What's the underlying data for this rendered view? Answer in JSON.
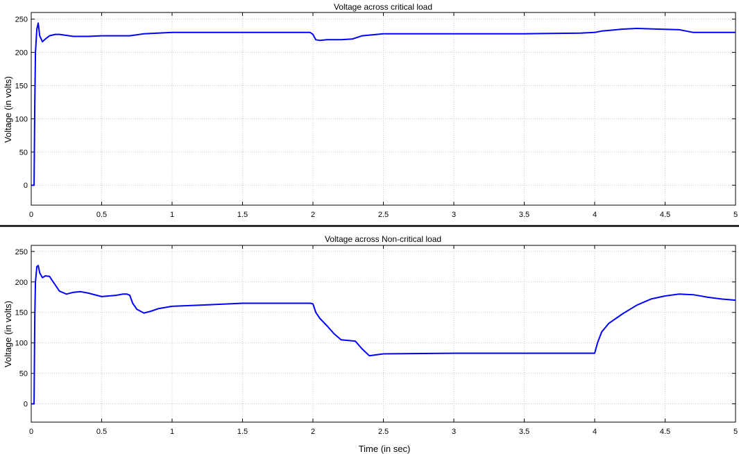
{
  "chart_data": [
    {
      "type": "line",
      "title": "Voltage across critical load",
      "xlabel": "",
      "ylabel": "Voltage (in volts)",
      "xlim": [
        0,
        5
      ],
      "ylim": [
        -30,
        260
      ],
      "xticks": [
        0,
        0.5,
        1,
        1.5,
        2,
        2.5,
        3,
        3.5,
        4,
        4.5,
        5
      ],
      "xtick_labels": [
        "0",
        "0.5",
        "1",
        "1.5",
        "2",
        "2.5",
        "3",
        "3.5",
        "4",
        "4.5",
        "5"
      ],
      "yticks": [
        0,
        50,
        100,
        150,
        200,
        250
      ],
      "ytick_labels": [
        "0",
        "50",
        "100",
        "150",
        "200",
        "250"
      ],
      "grid": true,
      "line_color": "#0000ff",
      "series": [
        {
          "x": [
            0,
            0.02,
            0.025,
            0.03,
            0.04,
            0.05,
            0.06,
            0.08,
            0.1,
            0.13,
            0.17,
            0.2,
            0.3,
            0.4,
            0.5,
            0.6,
            0.7,
            0.8,
            0.9,
            1.0,
            1.2,
            1.5,
            1.8,
            1.98,
            2.0,
            2.02,
            2.05,
            2.1,
            2.2,
            2.28,
            2.35,
            2.5,
            3.0,
            3.5,
            3.9,
            4.0,
            4.05,
            4.1,
            4.2,
            4.3,
            4.45,
            4.6,
            4.65,
            4.7,
            5.0
          ],
          "y": [
            0,
            0,
            120,
            200,
            235,
            244,
            225,
            216,
            220,
            225,
            227,
            227,
            224,
            224,
            225,
            225,
            225,
            228,
            229,
            230,
            230,
            230,
            230,
            230,
            227,
            219,
            218,
            219,
            219,
            220,
            225,
            228,
            228,
            228,
            229,
            230,
            232,
            233,
            235,
            236,
            235,
            234,
            232,
            230,
            230
          ]
        }
      ]
    },
    {
      "type": "line",
      "title": "Voltage across Non-critical load",
      "xlabel": "Time (in sec)",
      "ylabel": "Voltage (in volts)",
      "xlim": [
        0,
        5
      ],
      "ylim": [
        -30,
        260
      ],
      "xticks": [
        0,
        0.5,
        1,
        1.5,
        2,
        2.5,
        3,
        3.5,
        4,
        4.5,
        5
      ],
      "xtick_labels": [
        "0",
        "0.5",
        "1",
        "1.5",
        "2",
        "2.5",
        "3",
        "3.5",
        "4",
        "4.5",
        "5"
      ],
      "yticks": [
        0,
        50,
        100,
        150,
        200,
        250
      ],
      "ytick_labels": [
        "0",
        "50",
        "100",
        "150",
        "200",
        "250"
      ],
      "grid": true,
      "line_color": "#0000ff",
      "series": [
        {
          "x": [
            0,
            0.02,
            0.025,
            0.03,
            0.04,
            0.05,
            0.06,
            0.08,
            0.1,
            0.13,
            0.15,
            0.2,
            0.25,
            0.3,
            0.35,
            0.4,
            0.5,
            0.6,
            0.65,
            0.68,
            0.7,
            0.72,
            0.75,
            0.8,
            0.85,
            0.9,
            1.0,
            1.2,
            1.5,
            1.8,
            1.98,
            2.0,
            2.02,
            2.05,
            2.1,
            2.15,
            2.2,
            2.3,
            2.35,
            2.4,
            2.5,
            3.0,
            3.5,
            3.9,
            4.0,
            4.02,
            4.05,
            4.1,
            4.2,
            4.3,
            4.4,
            4.5,
            4.6,
            4.7,
            4.8,
            4.9,
            5.0
          ],
          "y": [
            0,
            0,
            140,
            200,
            225,
            227,
            215,
            207,
            210,
            209,
            202,
            185,
            180,
            183,
            184,
            182,
            176,
            178,
            180,
            180,
            178,
            165,
            155,
            149,
            152,
            156,
            160,
            162,
            165,
            165,
            165,
            164,
            150,
            140,
            128,
            115,
            105,
            103,
            90,
            79,
            82,
            83,
            83,
            83,
            83,
            100,
            118,
            132,
            148,
            162,
            172,
            177,
            180,
            179,
            175,
            172,
            170
          ]
        }
      ]
    }
  ]
}
